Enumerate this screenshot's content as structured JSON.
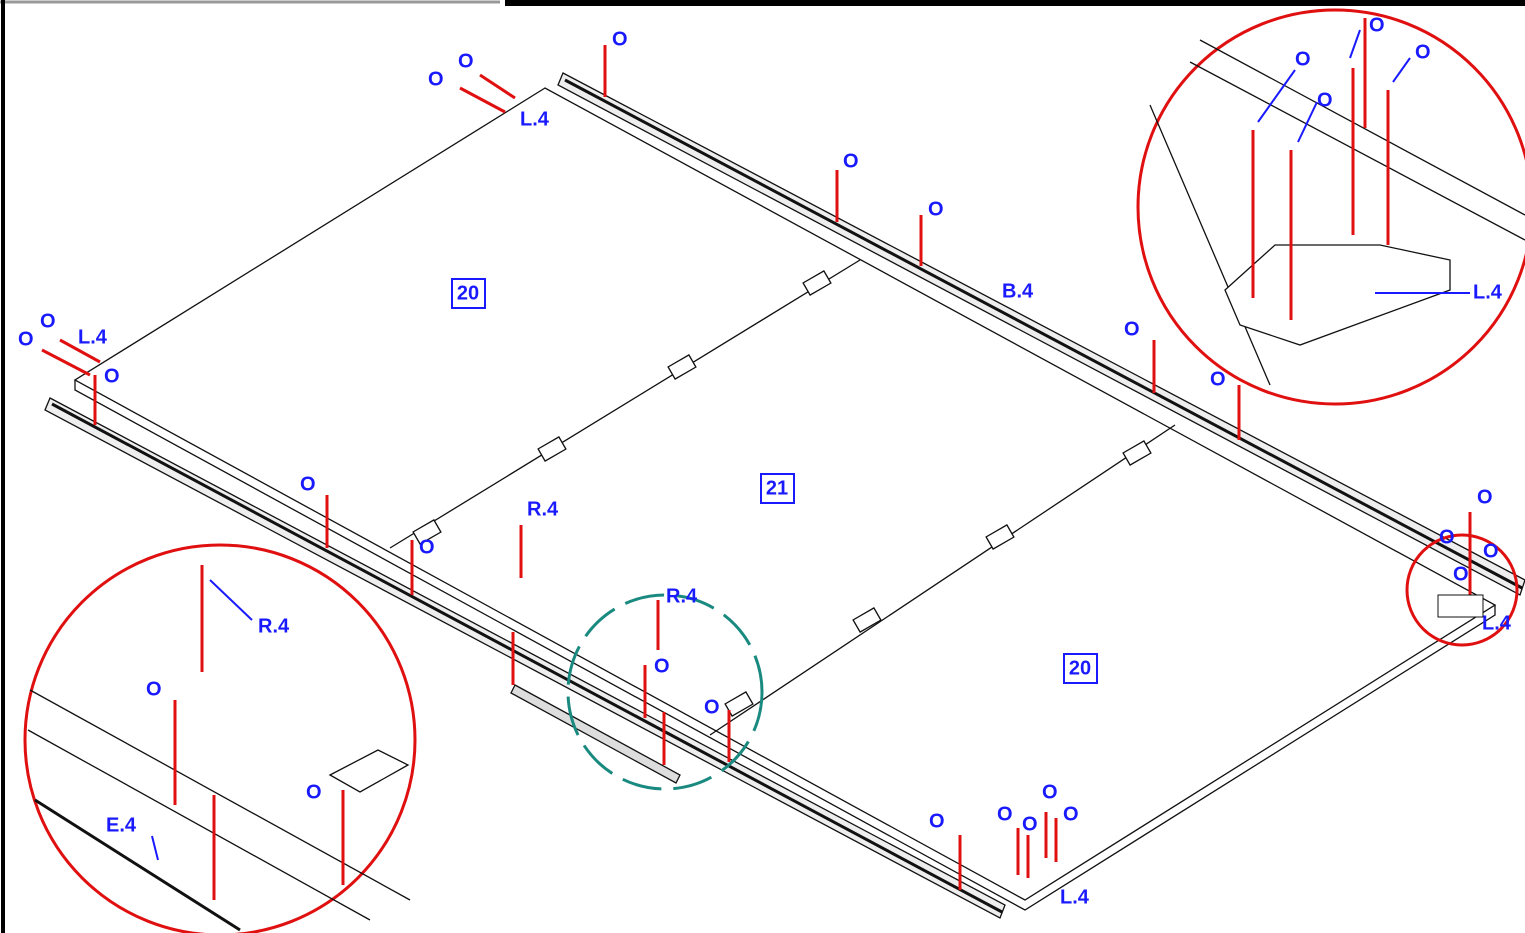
{
  "panels": [
    "20",
    "21",
    "20"
  ],
  "callouts": [
    "O",
    "O",
    "O",
    "L.4",
    "O",
    "O",
    "B.4",
    "O",
    "O",
    "L.4",
    "O",
    "O",
    "O",
    "O",
    "R.4",
    "O",
    "R.4",
    "O",
    "O",
    "O",
    "O",
    "O",
    "O",
    "O",
    "L.4",
    "O",
    "O",
    "O",
    "O",
    "L.4",
    "O",
    "O",
    "O",
    "O",
    "L.4",
    "R.4",
    "O",
    "O",
    "E.4"
  ]
}
